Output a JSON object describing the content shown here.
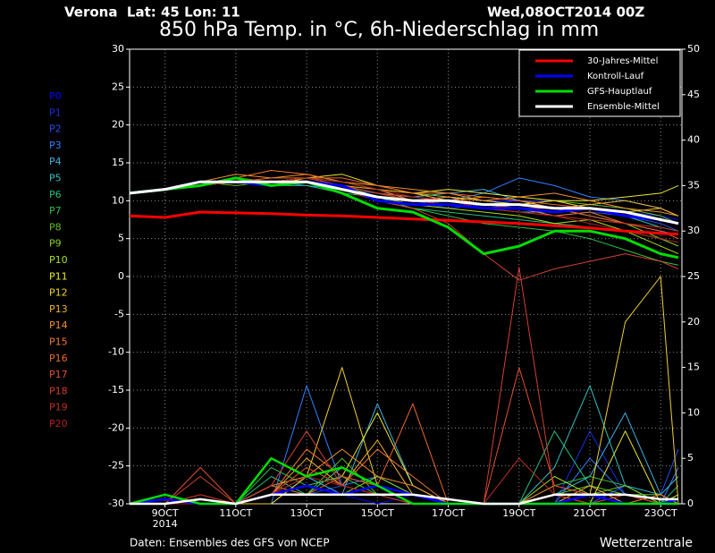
{
  "chart_data": {
    "type": "line",
    "location": "Verona  Lat: 45 Lon: 11",
    "date": "Wed,08OCT2014 00Z",
    "title": "850 hPa Temp. in °C, 6h-Niederschlag in mm",
    "source": "Daten: Ensembles des GFS von NCEP",
    "credit": "Wetterzentrale",
    "x_year_label": "2014",
    "x": [
      8,
      9,
      10,
      11,
      12,
      13,
      14,
      15,
      16,
      17,
      18,
      19,
      20,
      21,
      22,
      23,
      23.5
    ],
    "xlim": [
      8,
      23.6
    ],
    "xticks": [
      {
        "value": 9,
        "label": "9OCT"
      },
      {
        "value": 11,
        "label": "11OCT"
      },
      {
        "value": 13,
        "label": "13OCT"
      },
      {
        "value": 15,
        "label": "15OCT"
      },
      {
        "value": 17,
        "label": "17OCT"
      },
      {
        "value": 19,
        "label": "19OCT"
      },
      {
        "value": 21,
        "label": "21OCT"
      },
      {
        "value": 23,
        "label": "23OCT"
      }
    ],
    "ylim": [
      -30,
      30
    ],
    "yticks": [
      -30,
      -25,
      -20,
      -15,
      -10,
      -5,
      0,
      5,
      10,
      15,
      20,
      25,
      30
    ],
    "y2lim": [
      0,
      50
    ],
    "y2ticks": [
      0,
      5,
      10,
      15,
      20,
      25,
      30,
      35,
      40,
      45,
      50
    ],
    "grid": true,
    "legend": "top-right",
    "series": [
      {
        "name": "30-Jahres-Mittel",
        "color": "#ff0000",
        "values": [
          8,
          7.8,
          8.5,
          8.4,
          8.3,
          8.1,
          8,
          7.8,
          7.6,
          7.4,
          7.2,
          7,
          6.7,
          6.4,
          6,
          5.7,
          5.6
        ]
      },
      {
        "name": "Kontroll-Lauf",
        "color": "#0000ff",
        "values": [
          11,
          11.5,
          12.5,
          12.5,
          12,
          12.5,
          12,
          10,
          9.5,
          9.5,
          9,
          9,
          8.5,
          9,
          8,
          7.5,
          7
        ],
        "precip": [
          0,
          0.5,
          0,
          0,
          1,
          2,
          1,
          2,
          1,
          0,
          0,
          0,
          0,
          1,
          0,
          0,
          0.5
        ]
      },
      {
        "name": "GFS-Hauptlauf",
        "color": "#00dd00",
        "values": [
          11,
          11.5,
          12,
          13,
          12,
          12.5,
          11,
          9,
          8.5,
          6.5,
          3,
          4,
          6,
          6,
          5,
          3,
          2.5
        ],
        "precip": [
          0,
          1,
          0,
          0,
          5,
          3,
          4,
          2,
          0,
          0,
          0,
          0,
          0,
          0,
          0,
          0,
          0
        ]
      },
      {
        "name": "Ensemble-Mittel",
        "color": "#ffffff",
        "values": [
          11,
          11.5,
          12.5,
          12.5,
          12.5,
          12.5,
          11.5,
          10.5,
          10,
          10,
          9.5,
          9.5,
          9,
          9,
          8.5,
          7.5,
          7
        ],
        "precip": [
          0,
          0,
          0.5,
          0,
          1,
          1,
          1,
          1,
          1,
          0.5,
          0,
          0,
          1,
          1,
          1,
          0.5,
          0.5
        ]
      }
    ],
    "members": [
      {
        "name": "P0",
        "color": "#0000ff",
        "values": [
          11,
          11.5,
          12,
          12.5,
          12,
          12.5,
          12,
          10.5,
          10,
          10.5,
          10,
          10,
          9,
          9.5,
          9,
          8,
          7.5
        ],
        "precip": [
          0,
          0,
          0,
          0,
          1,
          2,
          1,
          0,
          1,
          0,
          0,
          0,
          0,
          0,
          2,
          0,
          1
        ]
      },
      {
        "name": "P1",
        "color": "#1030e0",
        "values": [
          11,
          11.5,
          12.5,
          12.5,
          12.5,
          13,
          12,
          11,
          10,
          9,
          9.5,
          10,
          10,
          9,
          8.5,
          8,
          7
        ],
        "precip": [
          0,
          0,
          0,
          0,
          1,
          3,
          1,
          2,
          1,
          0,
          0,
          0,
          0,
          8,
          1,
          0,
          0
        ]
      },
      {
        "name": "P2",
        "color": "#2050f0",
        "values": [
          11,
          11.5,
          12,
          12.5,
          12,
          12.5,
          11.5,
          11,
          10.5,
          10,
          9,
          9,
          8,
          8.5,
          8,
          7,
          6
        ],
        "precip": [
          0,
          0,
          0,
          0,
          2,
          1,
          2,
          1,
          0,
          0,
          0,
          0,
          1,
          0,
          2,
          1,
          6
        ]
      },
      {
        "name": "P3",
        "color": "#3080ff",
        "values": [
          11,
          11.5,
          12,
          13,
          12.5,
          12,
          11.5,
          10.5,
          10,
          10,
          11,
          13,
          12,
          10.5,
          10,
          9,
          8
        ],
        "precip": [
          0,
          0,
          0,
          0,
          0,
          13,
          2,
          3,
          1,
          0,
          0,
          0,
          0,
          5,
          1,
          0,
          4
        ]
      },
      {
        "name": "P4",
        "color": "#40b0e0",
        "values": [
          11,
          11.5,
          12.5,
          12.5,
          12,
          12.5,
          12,
          11,
          10.5,
          11,
          11.5,
          10,
          9,
          8,
          7,
          6,
          5.5
        ],
        "precip": [
          0,
          0,
          0,
          0,
          0,
          3,
          1,
          11,
          2,
          0,
          0,
          0,
          1,
          3,
          10,
          1,
          3
        ]
      },
      {
        "name": "P5",
        "color": "#30c0c0",
        "values": [
          11,
          11.5,
          12,
          12.5,
          12.5,
          13,
          12.5,
          11.5,
          10,
          9.5,
          9,
          8.5,
          8.5,
          9,
          8,
          6.5,
          6
        ],
        "precip": [
          0,
          1,
          0,
          0,
          1,
          2,
          3,
          2,
          1,
          0,
          0,
          0,
          4,
          13,
          2,
          1,
          0
        ]
      },
      {
        "name": "P6",
        "color": "#20c080",
        "values": [
          11,
          11.5,
          12,
          12.5,
          12,
          12,
          11,
          10.5,
          9,
          8.5,
          8,
          7.5,
          7,
          6.5,
          6,
          5,
          4
        ],
        "precip": [
          0,
          0,
          0,
          0,
          3,
          1,
          4,
          2,
          0,
          0,
          0,
          0,
          8,
          2,
          1,
          0,
          2
        ]
      },
      {
        "name": "P7",
        "color": "#30c040",
        "values": [
          11,
          11.5,
          12,
          12.5,
          12.5,
          12.5,
          11.5,
          10,
          9,
          8,
          7,
          6.5,
          6,
          5,
          3.5,
          2,
          1.5
        ],
        "precip": [
          0,
          1,
          0,
          0,
          4,
          2,
          3,
          1,
          1,
          0,
          0,
          0,
          2,
          3,
          2,
          0,
          1
        ]
      },
      {
        "name": "P8",
        "color": "#60c020",
        "values": [
          11,
          11.5,
          12.5,
          12,
          12.5,
          12.5,
          12,
          11,
          10,
          9.5,
          9,
          9.5,
          10,
          9.5,
          9,
          8,
          7
        ],
        "precip": [
          0,
          0,
          0,
          0,
          2,
          1,
          5,
          1,
          0,
          0,
          0,
          0,
          1,
          2,
          1,
          1,
          0
        ]
      },
      {
        "name": "P9",
        "color": "#80d020",
        "values": [
          11,
          11.5,
          12,
          12.5,
          12.5,
          13,
          12.5,
          11.5,
          11,
          10.5,
          10,
          9.5,
          9,
          8,
          7,
          5,
          4
        ],
        "precip": [
          0,
          0,
          0,
          0,
          1,
          2,
          1,
          3,
          1,
          0,
          0,
          0,
          0,
          1,
          2,
          0,
          0
        ]
      },
      {
        "name": "P10",
        "color": "#a8e020",
        "values": [
          11,
          11.5,
          12,
          12.5,
          12,
          12.5,
          12,
          10.5,
          9.5,
          9,
          8.5,
          8,
          7,
          7.5,
          6,
          4,
          3
        ],
        "precip": [
          0,
          0,
          0,
          0,
          1,
          4,
          2,
          1,
          1,
          0,
          0,
          0,
          3,
          1,
          0,
          0,
          1
        ]
      },
      {
        "name": "P11",
        "color": "#e8e830",
        "values": [
          11,
          11.5,
          12,
          12.5,
          12.5,
          13,
          13.5,
          12,
          11,
          11.5,
          11,
          10.5,
          10,
          10,
          10.5,
          11,
          12
        ],
        "precip": [
          0,
          0,
          0,
          0,
          1,
          6,
          3,
          10,
          2,
          0,
          0,
          0,
          1,
          0,
          8,
          0,
          0
        ]
      },
      {
        "name": "P12",
        "color": "#f0d030",
        "values": [
          11,
          11.5,
          12,
          12.5,
          12,
          13,
          12,
          11,
          10,
          10.5,
          10,
          9.5,
          10,
          9,
          8.5,
          9,
          8
        ],
        "precip": [
          0,
          0,
          0,
          0,
          0,
          3,
          15,
          2,
          1,
          0,
          0,
          0,
          0,
          1,
          20,
          25,
          0
        ]
      },
      {
        "name": "P13",
        "color": "#f0b030",
        "values": [
          11,
          11.5,
          12,
          13,
          12.5,
          13,
          12,
          11.5,
          11,
          10,
          10.5,
          10,
          9,
          9.5,
          10,
          9,
          8
        ],
        "precip": [
          0,
          0,
          0,
          0,
          1,
          5,
          2,
          7,
          1,
          0,
          0,
          0,
          0,
          2,
          0,
          1,
          0
        ]
      },
      {
        "name": "P14",
        "color": "#f09030",
        "values": [
          11,
          11.5,
          12.5,
          13.5,
          13,
          13.5,
          12.5,
          12,
          11.5,
          11,
          10,
          10.5,
          11,
          10,
          9,
          8.5,
          8
        ],
        "precip": [
          0,
          0,
          0,
          0,
          2,
          3,
          6,
          3,
          2,
          0,
          0,
          0,
          1,
          0,
          1,
          0,
          0
        ]
      },
      {
        "name": "P15",
        "color": "#f07830",
        "values": [
          11,
          11.5,
          12,
          13,
          14,
          13.5,
          12.5,
          11.5,
          10,
          10.5,
          9.5,
          9,
          8,
          8.5,
          7,
          6,
          5
        ],
        "precip": [
          0,
          0,
          1,
          0,
          1,
          4,
          2,
          6,
          3,
          0,
          0,
          0,
          2,
          1,
          0,
          0,
          0
        ]
      },
      {
        "name": "P16",
        "color": "#e86830",
        "values": [
          11,
          11.5,
          12,
          12.5,
          13,
          13,
          13,
          12,
          11,
          11,
          10.5,
          10,
          9.5,
          9,
          8.5,
          7.5,
          7
        ],
        "precip": [
          0,
          0,
          0,
          0,
          2,
          1,
          3,
          2,
          11,
          0,
          0,
          0,
          1,
          0,
          0,
          1,
          0
        ]
      },
      {
        "name": "P17",
        "color": "#e05030",
        "values": [
          11,
          11.5,
          12,
          13,
          12.5,
          12.5,
          12,
          11,
          10.5,
          10,
          9.5,
          9,
          9,
          8,
          7,
          6,
          5
        ],
        "precip": [
          0,
          0,
          4,
          0,
          1,
          6,
          3,
          2,
          1,
          0,
          0,
          15,
          2,
          1,
          0,
          0,
          0
        ]
      },
      {
        "name": "P18",
        "color": "#d04030",
        "values": [
          11,
          11.5,
          12,
          12.5,
          12,
          12.5,
          11.5,
          10,
          9,
          7,
          3,
          -0.5,
          1,
          2,
          3,
          2,
          1
        ],
        "precip": [
          0,
          0,
          3,
          0,
          2,
          8,
          2,
          1,
          0,
          0,
          0,
          26,
          1,
          0,
          1,
          0,
          0
        ]
      },
      {
        "name": "P19",
        "color": "#c03020",
        "values": [
          11,
          11.5,
          12,
          12.5,
          12.5,
          13,
          12,
          11,
          10,
          9.5,
          9,
          8.5,
          8,
          7.5,
          7,
          6.5,
          6
        ],
        "precip": [
          0,
          0,
          1,
          0,
          1,
          4,
          2,
          1,
          0,
          0,
          0,
          5,
          1,
          0,
          0,
          0,
          0
        ]
      },
      {
        "name": "P20",
        "color": "#b02020",
        "values": [
          11,
          11.5,
          12,
          12.5,
          12.5,
          13,
          12.5,
          11.5,
          10.5,
          10,
          9,
          8.5,
          8,
          7,
          6,
          5,
          4.5
        ],
        "precip": [
          0,
          0,
          0,
          0,
          1,
          3,
          2,
          1,
          1,
          0,
          0,
          0,
          0,
          1,
          0,
          0,
          0
        ]
      }
    ]
  }
}
